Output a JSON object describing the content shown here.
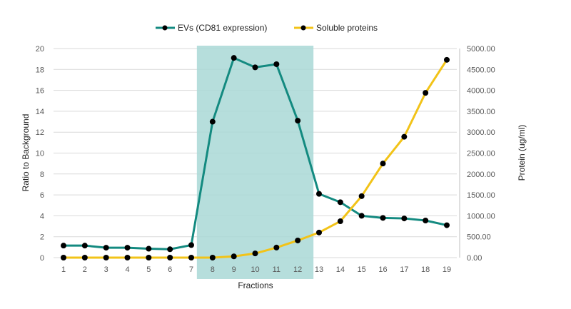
{
  "chart_data": {
    "type": "line",
    "title": "",
    "xlabel": "Fractions",
    "ylabel": "Ratio to Background",
    "y2label": "Protein  (ug/ml)",
    "x": [
      1,
      2,
      3,
      4,
      5,
      6,
      7,
      8,
      9,
      10,
      11,
      12,
      13,
      14,
      15,
      16,
      17,
      18,
      19
    ],
    "ylim": [
      0,
      20
    ],
    "y2lim": [
      0,
      5000
    ],
    "yticks": [
      "0",
      "2",
      "4",
      "6",
      "8",
      "10",
      "12",
      "14",
      "16",
      "18",
      "20"
    ],
    "y2ticks": [
      "0.00",
      "500.00",
      "1000.00",
      "1500.00",
      "2000.00",
      "2500.00",
      "3000.00",
      "3500.00",
      "4000.00",
      "4500.00",
      "5000.00"
    ],
    "grid": true,
    "legend_position": "top",
    "highlight_range": [
      8,
      12
    ],
    "series": [
      {
        "name": "EVs (CD81 expression)",
        "axis": "left",
        "color": "#138a80",
        "values": [
          1.15,
          1.15,
          0.95,
          0.95,
          0.85,
          0.8,
          1.2,
          13.0,
          19.1,
          18.2,
          18.5,
          13.1,
          6.1,
          5.3,
          4.0,
          3.8,
          3.75,
          3.55,
          3.1
        ]
      },
      {
        "name": "Soluble proteins",
        "axis": "right",
        "color": "#f2c318",
        "values": [
          0,
          0,
          0,
          0,
          0,
          0,
          0,
          0,
          30,
          100,
          240,
          410,
          600,
          870,
          1470,
          2250,
          2890,
          3940,
          4730
        ]
      }
    ]
  }
}
